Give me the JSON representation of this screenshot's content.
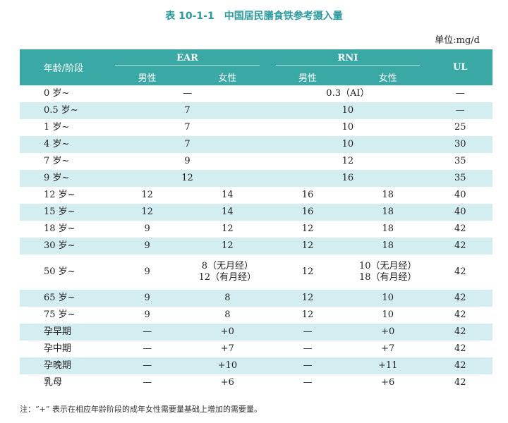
{
  "title": "表 10-1-1　中国居民膳食铁参考摄入量",
  "unit": "单位:mg/d",
  "headers": {
    "age": "年龄/阶段",
    "ear": "EAR",
    "rni": "RNI",
    "ul": "UL",
    "male": "男性",
    "female": "女性"
  },
  "rows": [
    {
      "age": "0 岁~",
      "merged_ear": "—",
      "merged_rni": "0.3（AI）",
      "ul": "—"
    },
    {
      "age": "0.5 岁~",
      "merged_ear": "7",
      "merged_rni": "10",
      "ul": "—"
    },
    {
      "age": "1 岁~",
      "merged_ear": "7",
      "merged_rni": "10",
      "ul": "25"
    },
    {
      "age": "4 岁~",
      "merged_ear": "7",
      "merged_rni": "10",
      "ul": "30"
    },
    {
      "age": "7 岁~",
      "merged_ear": "9",
      "merged_rni": "12",
      "ul": "35"
    },
    {
      "age": "9 岁~",
      "merged_ear": "12",
      "merged_rni": "16",
      "ul": "35"
    },
    {
      "age": "12 岁~",
      "ear_m": "12",
      "ear_f": "14",
      "rni_m": "16",
      "rni_f": "18",
      "ul": "40"
    },
    {
      "age": "15 岁~",
      "ear_m": "12",
      "ear_f": "14",
      "rni_m": "16",
      "rni_f": "18",
      "ul": "40"
    },
    {
      "age": "18 岁~",
      "ear_m": "9",
      "ear_f": "12",
      "rni_m": "12",
      "rni_f": "18",
      "ul": "42"
    },
    {
      "age": "30 岁~",
      "ear_m": "9",
      "ear_f": "12",
      "rni_m": "12",
      "rni_f": "18",
      "ul": "42"
    },
    {
      "age": "50 岁~",
      "ear_m": "9",
      "ear_f": "8（无月经）",
      "ear_f2": "12（有月经）",
      "rni_m": "12",
      "rni_f": "10（无月经）",
      "rni_f2": "18（有月经）",
      "ul": "42"
    },
    {
      "age": "65 岁~",
      "ear_m": "9",
      "ear_f": "8",
      "rni_m": "12",
      "rni_f": "10",
      "ul": "42"
    },
    {
      "age": "75 岁~",
      "ear_m": "9",
      "ear_f": "8",
      "rni_m": "12",
      "rni_f": "10",
      "ul": "42"
    },
    {
      "age": "孕早期",
      "ear_m": "—",
      "ear_f": "+0",
      "rni_m": "—",
      "rni_f": "+0",
      "ul": "42"
    },
    {
      "age": "孕中期",
      "ear_m": "—",
      "ear_f": "+7",
      "rni_m": "—",
      "rni_f": "+7",
      "ul": "42"
    },
    {
      "age": "孕晚期",
      "ear_m": "—",
      "ear_f": "+10",
      "rni_m": "—",
      "rni_f": "+11",
      "ul": "42"
    },
    {
      "age": "乳母",
      "ear_m": "—",
      "ear_f": "+6",
      "rni_m": "—",
      "rni_f": "+6",
      "ul": "42"
    }
  ],
  "note": "注：“+” 表示在相应年龄阶段的成年女性需要量基础上增加的需要量。",
  "colors": {
    "header": "#3aa9a6",
    "stripe": "#d3edf1",
    "title": "#2a9a9c"
  }
}
